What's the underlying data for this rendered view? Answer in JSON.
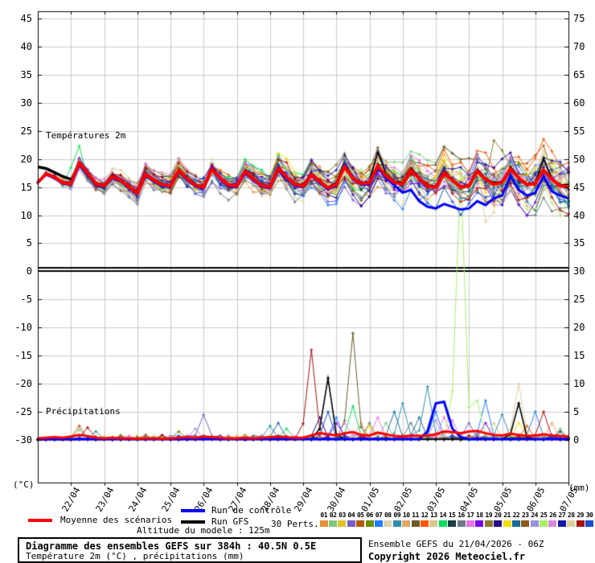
{
  "legend": {
    "mean_label": "Moyenne des scénarios",
    "control_label": "Run de contrôle",
    "gfs_label": "Run GFS",
    "perts_label": "30 Perts.",
    "altitude_label": "Altitude du modele : 125m"
  },
  "footer": {
    "title_line1": "Diagramme des ensembles GEFS sur 384h : 40.5N 0.5E",
    "title_line2": "Température 2m (°C) , précipitations (mm)",
    "run_info": "Ensemble GEFS du 21/04/2026 - 06Z",
    "copyright": "Copyright 2026 Meteociel.fr"
  },
  "chart_data": {
    "type": "line",
    "title": "Diagramme des ensembles GEFS sur 384h : 40.5N 0.5E",
    "x_hours_step": 6,
    "x_labels": [
      "22/04",
      "23/04",
      "24/04",
      "25/04",
      "26/04",
      "27/04",
      "28/04",
      "29/04",
      "30/04",
      "01/05",
      "02/05",
      "03/05",
      "04/05",
      "05/05",
      "06/05",
      "07/05"
    ],
    "temp_axis": {
      "unit": "(°C)",
      "min": -30,
      "max": 45,
      "ticks": [
        45,
        40,
        35,
        30,
        25,
        20,
        15,
        10,
        5,
        0,
        -5,
        -10,
        -15,
        -20,
        -25,
        -30
      ]
    },
    "precip_axis": {
      "unit": "(mm)",
      "min": 0,
      "max": 80,
      "ticks": [
        75,
        70,
        65,
        60,
        55,
        50,
        45,
        40,
        35,
        30,
        25,
        20,
        15,
        10,
        5,
        0
      ]
    },
    "colors": {
      "mean": "#FF0000",
      "control": "#0000FF",
      "gfs": "#000000",
      "grid": "#C8C8C8",
      "axis": "#000000"
    },
    "temperature": {
      "label": "Températures 2m",
      "mean": [
        15.8,
        17.4,
        16.8,
        15.8,
        15.6,
        19.3,
        17.5,
        15.6,
        15.2,
        16.9,
        16.2,
        15.0,
        13.9,
        17.3,
        16.2,
        15.4,
        15.2,
        18.0,
        16.5,
        15.3,
        15.0,
        18.2,
        16.6,
        15.4,
        15.2,
        17.8,
        16.4,
        15.3,
        15.0,
        18.3,
        16.8,
        15.5,
        15.2,
        17.2,
        16.0,
        14.8,
        15.5,
        18.6,
        16.6,
        15.6,
        15.8,
        18.8,
        17.0,
        15.8,
        15.5,
        18.0,
        16.5,
        15.2,
        15.0,
        17.5,
        16.2,
        15.0,
        15.2,
        17.8,
        16.4,
        15.5,
        15.8,
        18.2,
        16.6,
        15.4,
        15.6,
        18.0,
        16.4,
        15.2,
        15.0
      ],
      "control": [
        15.9,
        17.2,
        16.6,
        15.7,
        15.5,
        19.0,
        17.2,
        15.4,
        15.0,
        16.6,
        16.0,
        14.8,
        13.7,
        17.0,
        16.0,
        15.2,
        15.0,
        17.8,
        16.3,
        15.1,
        14.8,
        18.5,
        16.4,
        15.2,
        15.0,
        17.5,
        16.2,
        15.1,
        14.8,
        18.0,
        16.5,
        15.3,
        15.0,
        17.0,
        15.8,
        14.6,
        15.3,
        19.0,
        16.4,
        15.4,
        15.6,
        18.4,
        16.6,
        15.4,
        14.0,
        14.5,
        12.5,
        11.5,
        11.2,
        12.0,
        11.5,
        11.0,
        11.2,
        12.5,
        11.8,
        13.0,
        13.5,
        17.0,
        14.5,
        13.5,
        14.0,
        17.0,
        14.2,
        13.5,
        13.0
      ],
      "gfs": [
        18.6,
        18.3,
        17.6,
        16.9,
        16.4,
        19.5,
        17.8,
        15.8,
        15.4,
        17.2,
        16.4,
        15.2,
        14.2,
        17.6,
        16.4,
        15.6,
        15.4,
        18.3,
        16.7,
        15.5,
        15.2,
        18.6,
        16.8,
        15.6,
        15.4,
        18.0,
        16.6,
        15.5,
        15.2,
        18.6,
        17.0,
        15.7,
        15.4,
        17.5,
        16.2,
        15.0,
        15.8,
        19.2,
        16.8,
        15.8,
        16.0,
        21.3,
        17.4,
        16.0,
        15.8,
        18.4,
        16.8,
        15.4,
        15.2,
        17.8,
        16.4,
        15.2,
        15.4,
        18.2,
        16.6,
        15.8,
        16.0,
        18.6,
        16.8,
        15.6,
        15.8,
        20.0,
        16.6,
        15.4,
        15.5
      ],
      "spread": [
        0.8,
        0.9,
        0.9,
        1.0,
        1.0,
        1.1,
        1.1,
        1.2,
        1.3,
        1.3,
        1.4,
        1.4,
        1.5,
        1.6,
        1.6,
        1.7,
        1.7,
        1.8,
        1.8,
        1.9,
        2.0,
        2.0,
        2.1,
        2.1,
        2.2,
        2.2,
        2.3,
        2.4,
        2.4,
        2.5,
        2.5,
        2.6,
        2.7,
        2.7,
        2.8,
        2.8,
        2.9,
        2.9,
        3.0,
        3.1,
        3.1,
        3.2,
        3.2,
        3.3,
        3.4,
        3.4,
        3.5,
        3.5,
        3.6,
        3.6,
        3.7,
        3.8,
        3.8,
        3.9,
        3.9,
        4.0,
        4.1,
        4.1,
        4.2,
        4.2,
        4.3,
        4.3,
        4.4,
        4.5,
        4.5
      ],
      "member_overrides": [
        [
          14,
          5,
          22.3
        ],
        [
          14,
          4,
          18.5
        ],
        [
          19,
          55,
          23.3
        ],
        [
          19,
          56,
          21.5
        ],
        [
          28,
          54,
          8.8
        ],
        [
          28,
          55,
          10.5
        ]
      ]
    },
    "precipitation": {
      "label": "Précipitations",
      "mean": [
        0.3,
        0.4,
        0.5,
        0.4,
        0.6,
        0.9,
        0.7,
        0.4,
        0.3,
        0.4,
        0.3,
        0.3,
        0.2,
        0.3,
        0.3,
        0.2,
        0.3,
        0.4,
        0.5,
        0.4,
        0.6,
        0.5,
        0.4,
        0.3,
        0.3,
        0.4,
        0.3,
        0.4,
        0.5,
        0.6,
        0.5,
        0.4,
        0.4,
        0.8,
        1.2,
        1.0,
        0.8,
        1.2,
        1.4,
        0.9,
        0.8,
        1.3,
        1.0,
        0.7,
        0.6,
        0.8,
        0.7,
        0.8,
        1.0,
        1.5,
        1.4,
        1.2,
        1.5,
        1.6,
        1.2,
        0.9,
        0.8,
        1.1,
        0.9,
        0.7,
        0.8,
        1.0,
        0.8,
        0.7,
        0.6
      ],
      "control_spikes": [
        [
          47,
          1.5
        ],
        [
          48,
          6.5
        ],
        [
          49,
          6.8
        ],
        [
          50,
          2.0
        ],
        [
          51,
          0.5
        ]
      ],
      "gfs_spikes": [
        [
          34,
          2.0
        ],
        [
          35,
          11.0
        ],
        [
          36,
          1.0
        ],
        [
          57,
          1.0
        ],
        [
          58,
          6.5
        ],
        [
          59,
          0.5
        ]
      ],
      "member_spikes": [
        [
          5,
          5,
          2.5
        ],
        [
          2,
          5,
          1.8
        ],
        [
          29,
          6,
          2.2
        ],
        [
          9,
          7,
          1.5
        ],
        [
          6,
          17,
          1.5
        ],
        [
          24,
          19,
          2
        ],
        [
          4,
          20,
          4.5
        ],
        [
          9,
          28,
          2.5
        ],
        [
          22,
          29,
          3
        ],
        [
          14,
          30,
          2
        ],
        [
          29,
          33,
          16
        ],
        [
          20,
          34,
          4
        ],
        [
          30,
          35,
          5
        ],
        [
          7,
          36,
          4
        ],
        [
          18,
          36,
          3
        ],
        [
          26,
          37,
          3
        ],
        [
          11,
          38,
          19
        ],
        [
          14,
          38,
          6
        ],
        [
          10,
          39,
          3
        ],
        [
          16,
          40,
          3
        ],
        [
          21,
          40,
          2.5
        ],
        [
          17,
          41,
          4
        ],
        [
          2,
          42,
          3
        ],
        [
          22,
          43,
          5
        ],
        [
          9,
          44,
          6.5
        ],
        [
          16,
          45,
          3
        ],
        [
          22,
          46,
          4
        ],
        [
          9,
          47,
          9.5
        ],
        [
          7,
          48,
          5
        ],
        [
          24,
          48,
          3.5
        ],
        [
          17,
          49,
          4
        ],
        [
          26,
          50,
          3.5
        ],
        [
          25,
          51,
          48
        ],
        [
          4,
          52,
          3
        ],
        [
          25,
          53,
          7
        ],
        [
          7,
          54,
          7
        ],
        [
          18,
          54,
          3
        ],
        [
          13,
          55,
          3
        ],
        [
          9,
          56,
          4.5
        ],
        [
          28,
          58,
          10
        ],
        [
          21,
          58,
          3
        ],
        [
          12,
          59,
          2.5
        ],
        [
          7,
          60,
          5
        ],
        [
          29,
          61,
          5
        ],
        [
          10,
          62,
          3
        ],
        [
          2,
          63,
          2
        ],
        [
          15,
          63,
          1.5
        ]
      ]
    },
    "members": [
      {
        "num": "01",
        "color": "#E8913A"
      },
      {
        "num": "02",
        "color": "#7DC87D"
      },
      {
        "num": "03",
        "color": "#E3C229"
      },
      {
        "num": "04",
        "color": "#7A5CC8"
      },
      {
        "num": "05",
        "color": "#B35A00"
      },
      {
        "num": "06",
        "color": "#6B8E00"
      },
      {
        "num": "07",
        "color": "#1F7FFF"
      },
      {
        "num": "08",
        "color": "#DCD7AE"
      },
      {
        "num": "09",
        "color": "#2E8FAE"
      },
      {
        "num": "10",
        "color": "#E0A868"
      },
      {
        "num": "11",
        "color": "#6B5A28"
      },
      {
        "num": "12",
        "color": "#FF5500"
      },
      {
        "num": "13",
        "color": "#D6C98A"
      },
      {
        "num": "14",
        "color": "#00E05A"
      },
      {
        "num": "15",
        "color": "#1C3A46"
      },
      {
        "num": "16",
        "color": "#6A7A82"
      },
      {
        "num": "17",
        "color": "#E874E8"
      },
      {
        "num": "18",
        "color": "#7A00E8"
      },
      {
        "num": "19",
        "color": "#8A7A28"
      },
      {
        "num": "20",
        "color": "#28088A"
      },
      {
        "num": "21",
        "color": "#F0E000"
      },
      {
        "num": "22",
        "color": "#1A6A9A"
      },
      {
        "num": "23",
        "color": "#8A5A1A"
      },
      {
        "num": "24",
        "color": "#9A90E0"
      },
      {
        "num": "25",
        "color": "#A8F060"
      },
      {
        "num": "26",
        "color": "#D888D8"
      },
      {
        "num": "27",
        "color": "#1818A8"
      },
      {
        "num": "28",
        "color": "#DCD0A0"
      },
      {
        "num": "29",
        "color": "#A81010"
      },
      {
        "num": "30",
        "color": "#1A50C8"
      }
    ]
  }
}
